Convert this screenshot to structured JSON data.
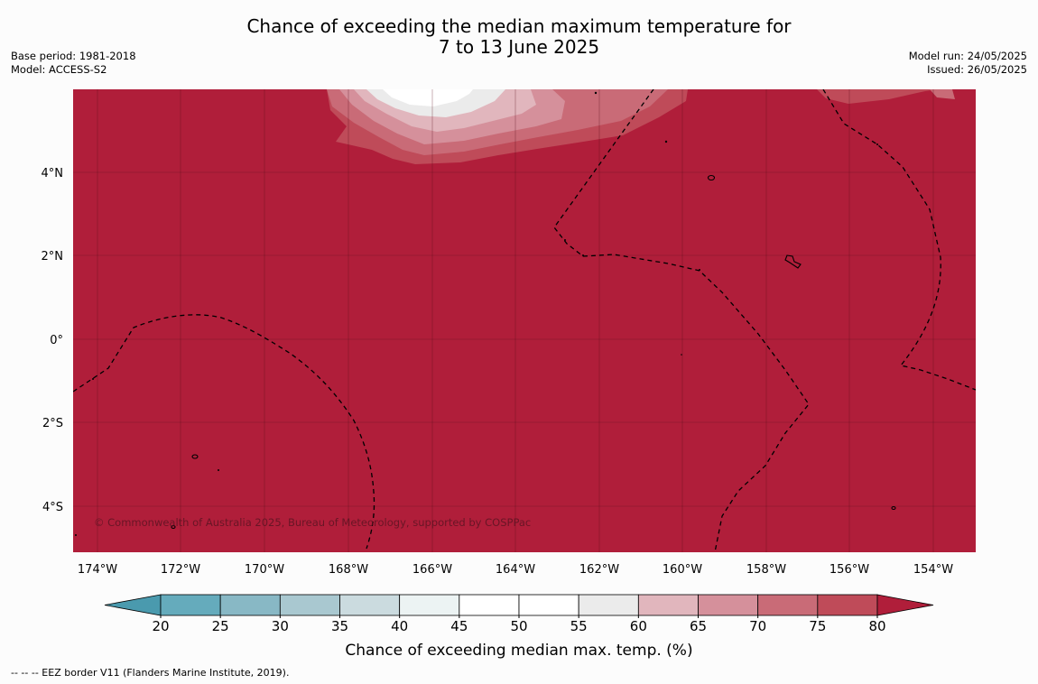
{
  "title": {
    "line1": "Chance of exceeding the median maximum temperature for",
    "line2": "7 to 13 June 2025"
  },
  "meta": {
    "base_period": "Base period: 1981-2018",
    "model": "Model: ACCESS-S2",
    "model_run": "Model run: 24/05/2025",
    "issued": "Issued: 26/05/2025"
  },
  "map": {
    "lat_labels": [
      "4°N",
      "2°N",
      "0°",
      "2°S",
      "4°S"
    ],
    "lon_labels": [
      "174°W",
      "172°W",
      "170°W",
      "168°W",
      "166°W",
      "164°W",
      "162°W",
      "160°W",
      "158°W",
      "156°W",
      "154°W"
    ],
    "copyright": "© Commonwealth of Australia 2025, Bureau of Meteorology, supported by COSPPac",
    "background_color": "#b01e3a"
  },
  "colorbar": {
    "ticks": [
      "20",
      "25",
      "30",
      "35",
      "40",
      "45",
      "50",
      "55",
      "60",
      "65",
      "70",
      "75",
      "80"
    ],
    "colors": [
      "#65abbc",
      "#88b8c5",
      "#a9c8d0",
      "#cbdbdf",
      "#ecf3f3",
      "#ffffff",
      "#ffffff",
      "#ebebeb",
      "#e1b6bd",
      "#d5909b",
      "#c96b77",
      "#bf4b59"
    ],
    "under_color": "#4a9aae",
    "over_color": "#b01e3a",
    "label": "Chance of exceeding median max. temp. (%)"
  },
  "footer": {
    "text": "--  --  -- EEZ border V11 (Flanders Marine Institute, 2019)."
  }
}
